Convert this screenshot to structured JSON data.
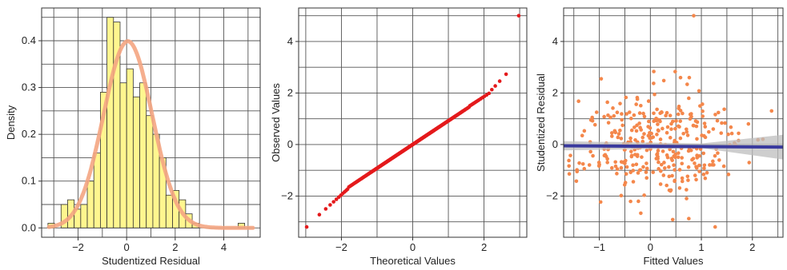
{
  "chart_data": [
    {
      "type": "bar",
      "title": "",
      "xlabel": "Studentized Residual",
      "ylabel": "Density",
      "xlim": [
        -3.5,
        5.5
      ],
      "ylim": [
        -0.02,
        0.47
      ],
      "xticks": [
        -2,
        0,
        2,
        4
      ],
      "yticks": [
        0.0,
        0.1,
        0.2,
        0.3,
        0.4
      ],
      "ytick_labels": [
        "0.0",
        "0.1",
        "0.2",
        "0.3",
        "0.4"
      ],
      "bin_width": 0.27,
      "bin_edges_start": -3.24,
      "bar_color": "#FFF68F",
      "bar_values": [
        0.01,
        0.0,
        0.05,
        0.06,
        0.04,
        0.05,
        0.1,
        0.16,
        0.29,
        0.45,
        0.44,
        0.31,
        0.34,
        0.28,
        0.31,
        0.24,
        0.2,
        0.15,
        0.07,
        0.08,
        0.06,
        0.03,
        0.01,
        0.0,
        0.0,
        0.0,
        0.0,
        0.0,
        0.0,
        0.01
      ],
      "curve": {
        "type": "normal-density",
        "mean": 0.05,
        "sd": 1.0,
        "color": "#F4A582"
      },
      "grid": true
    },
    {
      "type": "scatter",
      "title": "",
      "xlabel": "Theoretical Values",
      "ylabel": "Observed Values",
      "xlim": [
        -3.2,
        3.2
      ],
      "ylim": [
        -3.6,
        5.3
      ],
      "xticks": [
        -2,
        0,
        2
      ],
      "yticks": [
        -2,
        0,
        2,
        4
      ],
      "point_color": "#E41A1C",
      "n_points": 340,
      "grid": true
    },
    {
      "type": "scatter",
      "title": "",
      "xlabel": "Fitted Values",
      "ylabel": "Studentized Residual",
      "xlim": [
        -1.7,
        2.6
      ],
      "ylim": [
        -3.6,
        5.3
      ],
      "xticks": [
        -1,
        0,
        1,
        2
      ],
      "yticks": [
        -2,
        0,
        2,
        4
      ],
      "point_color": "#F4874B",
      "n_points": 340,
      "smooth_line": {
        "color": "#3A3A9E",
        "band_color": "#BEBEBE",
        "x": [
          -1.7,
          2.6
        ],
        "y": [
          -0.05,
          -0.1
        ]
      },
      "grid": true
    }
  ]
}
